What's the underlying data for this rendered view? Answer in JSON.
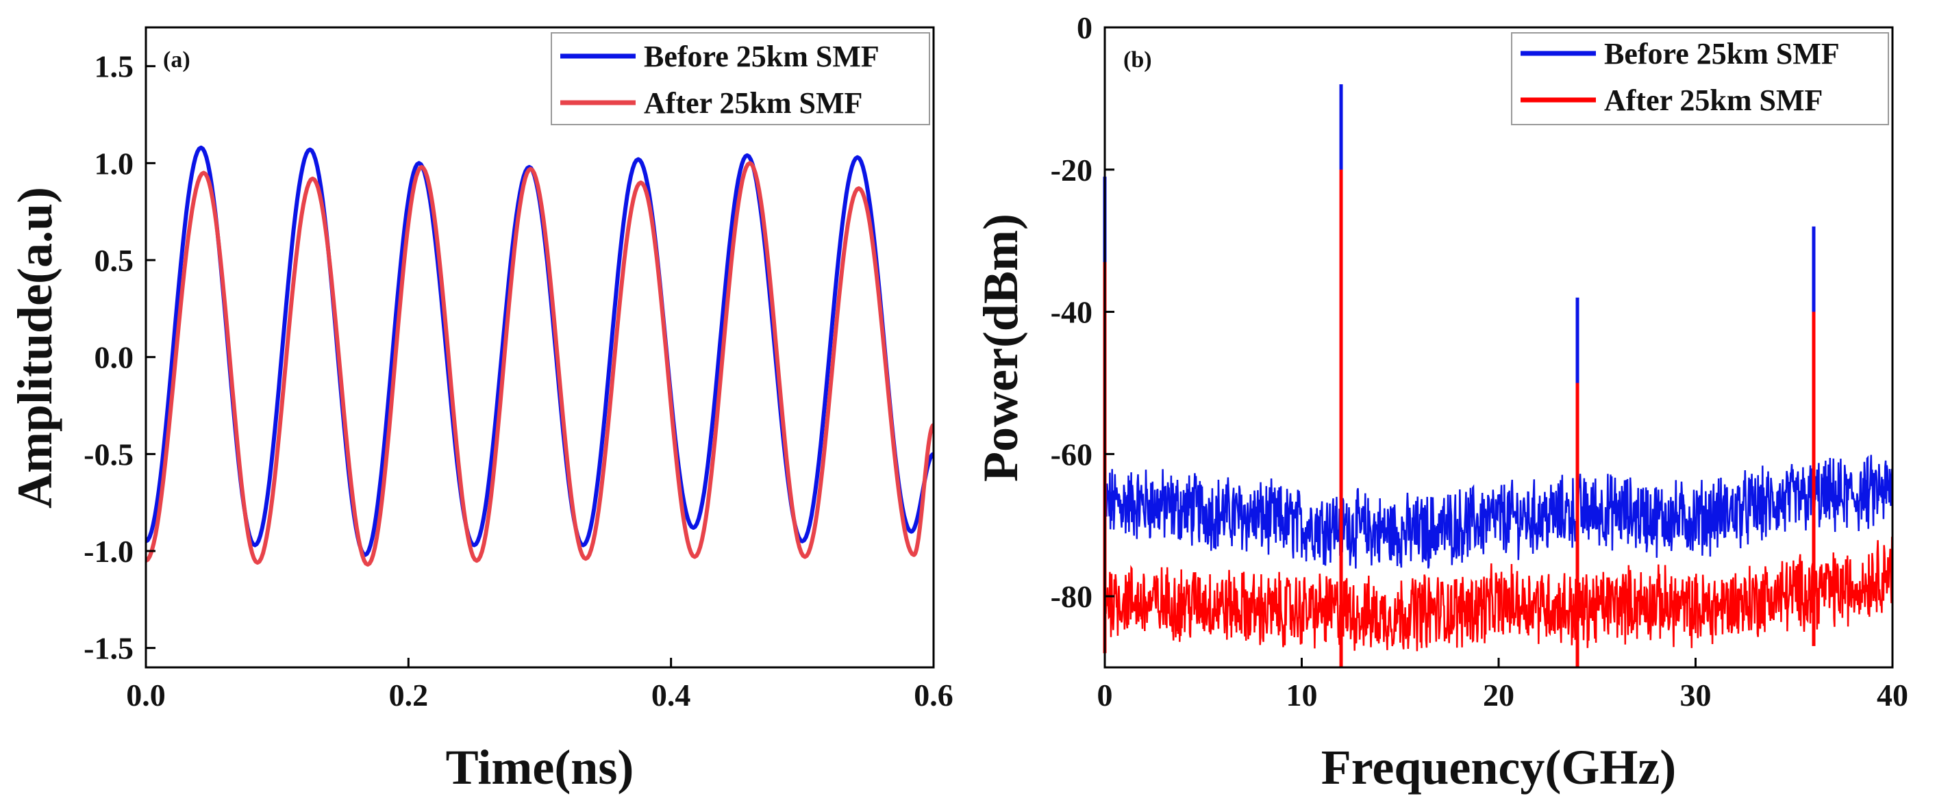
{
  "chart_data": [
    {
      "type": "line",
      "panel_tag": "(a)",
      "xlabel": "Time(ns)",
      "ylabel": "Amplitude(a.u)",
      "xlim": [
        0,
        0.6
      ],
      "ylim": [
        -1.6,
        1.7
      ],
      "xticks": [
        0.0,
        0.2,
        0.4,
        0.6
      ],
      "xtick_labels": [
        "0.0",
        "0.2",
        "0.4",
        "0.6"
      ],
      "yticks": [
        -1.5,
        -1.0,
        -0.5,
        0.0,
        0.5,
        1.0,
        1.5
      ],
      "ytick_labels": [
        "-1.5",
        "-1.0",
        "-0.5",
        "0.0",
        "0.5",
        "1.0",
        "1.5"
      ],
      "legend_position": "top-right",
      "series": [
        {
          "name": "Before 25km SMF",
          "color": "#0a14e6",
          "x": [
            0,
            0.042,
            0.083,
            0.125,
            0.167,
            0.208,
            0.25,
            0.292,
            0.333,
            0.375,
            0.417,
            0.458,
            0.5,
            0.542,
            0.583,
            0.6
          ],
          "y": [
            -0.95,
            1.08,
            -0.97,
            1.07,
            -1.02,
            1.0,
            -0.97,
            0.98,
            -0.97,
            1.02,
            -0.88,
            1.04,
            -0.95,
            1.03,
            -0.9,
            -0.5
          ]
        },
        {
          "name": "After 25km SMF",
          "color": "#e8434a",
          "x": [
            0,
            0.044,
            0.085,
            0.127,
            0.169,
            0.21,
            0.252,
            0.293,
            0.335,
            0.377,
            0.418,
            0.46,
            0.502,
            0.543,
            0.585,
            0.6
          ],
          "y": [
            -1.05,
            0.95,
            -1.06,
            0.92,
            -1.07,
            0.98,
            -1.05,
            0.97,
            -1.04,
            0.9,
            -1.03,
            1.0,
            -1.03,
            0.87,
            -1.02,
            -0.35
          ]
        }
      ]
    },
    {
      "type": "line",
      "panel_tag": "(b)",
      "xlabel": "Frequency(GHz)",
      "ylabel": "Power(dBm)",
      "xlim": [
        0,
        40
      ],
      "ylim": [
        -90,
        0
      ],
      "xticks": [
        0,
        10,
        20,
        30,
        40
      ],
      "xtick_labels": [
        "0",
        "10",
        "20",
        "30",
        "40"
      ],
      "yticks": [
        0,
        -20,
        -40,
        -60,
        -80
      ],
      "ytick_labels": [
        "0",
        "-20",
        "-40",
        "-60",
        "-80"
      ],
      "legend_position": "top-right",
      "series": [
        {
          "name": "Before 25km SMF",
          "color": "#0a14e6",
          "noise_floor_x": [
            0,
            2,
            5,
            8,
            10,
            12,
            14,
            16,
            18,
            20,
            22,
            24,
            26,
            28,
            30,
            32,
            34,
            36,
            38,
            40
          ],
          "noise_floor_y": [
            -67,
            -67,
            -68,
            -69,
            -70,
            -70,
            -71,
            -71,
            -70,
            -69,
            -69,
            -68,
            -68,
            -69,
            -69,
            -68,
            -67,
            -66,
            -66,
            -65
          ],
          "peaks": [
            {
              "x": 0,
              "y": -21
            },
            {
              "x": 12,
              "y": -8
            },
            {
              "x": 24,
              "y": -38
            },
            {
              "x": 36,
              "y": -28
            }
          ]
        },
        {
          "name": "After 25km SMF",
          "color": "#ff0000",
          "noise_floor_x": [
            0,
            2,
            5,
            8,
            10,
            12,
            14,
            16,
            18,
            20,
            22,
            24,
            26,
            28,
            30,
            32,
            34,
            36,
            38,
            40
          ],
          "noise_floor_y": [
            -80,
            -81,
            -81,
            -82,
            -82,
            -82,
            -83,
            -82,
            -82,
            -81,
            -81,
            -82,
            -81,
            -81,
            -82,
            -81,
            -80,
            -79,
            -79,
            -76
          ],
          "peaks": [
            {
              "x": 0,
              "y": -33
            },
            {
              "x": 12,
              "y": -20
            },
            {
              "x": 24,
              "y": -50
            },
            {
              "x": 36,
              "y": -40
            }
          ]
        }
      ]
    }
  ]
}
